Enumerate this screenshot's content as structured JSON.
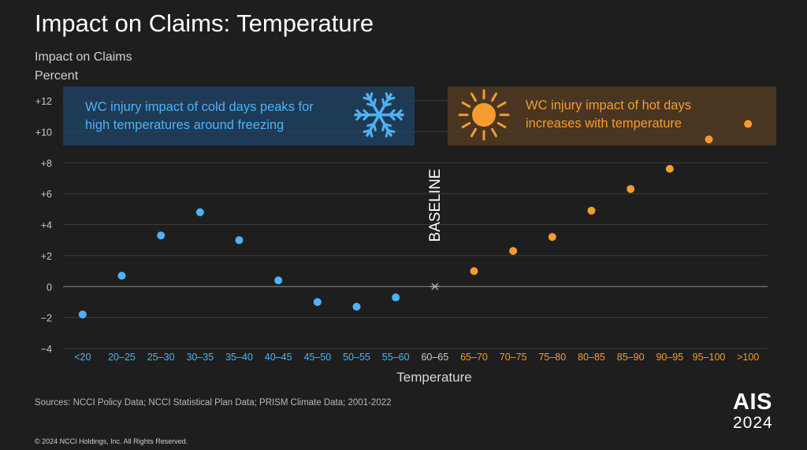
{
  "title": "Impact on Claims: Temperature",
  "y_axis_label_line1": "Impact on Claims",
  "y_axis_label_line2": "Percent",
  "source": "Sources: NCCI Policy Data; NCCI Statistical Plan Data; PRISM Climate Data; 2001-2022",
  "copyright": "© 2024 NCCI Holdings, Inc. All Rights Reserved.",
  "logo": {
    "name": "AIS",
    "year": "2024"
  },
  "colors": {
    "cold": "#4db3f5",
    "hot": "#f59c2e",
    "cold_box": "#1d3a57",
    "hot_box": "#4a3520",
    "grid": "#3c3c3c",
    "axis_text": "#c8c8c8",
    "zero_line": "#8a8a8a"
  },
  "icons": {
    "cold": "snowflake-icon",
    "hot": "sun-icon"
  },
  "chart_data": {
    "type": "scatter",
    "xlabel": "Temperature",
    "ylabel": "Impact on Claims Percent",
    "ylim": [
      -4,
      12
    ],
    "yticks": [
      "−4",
      "−2",
      "0",
      "+2",
      "+4",
      "+6",
      "+8",
      "+10",
      "+12"
    ],
    "categories": [
      "<20",
      "20–25",
      "25–30",
      "30–35",
      "35–40",
      "40–45",
      "45–50",
      "50–55",
      "55–60",
      "60–65",
      "65–70",
      "70–75",
      "75–80",
      "80–85",
      "85–90",
      "90–95",
      "95–100",
      ">100"
    ],
    "series": [
      {
        "group": "cold",
        "values": [
          -1.8,
          0.7,
          3.3,
          4.8,
          3.0,
          0.4,
          -1.0,
          -1.3,
          -0.7,
          null,
          null,
          null,
          null,
          null,
          null,
          null,
          null,
          null
        ]
      },
      {
        "group": "baseline",
        "values": [
          null,
          null,
          null,
          null,
          null,
          null,
          null,
          null,
          null,
          0,
          null,
          null,
          null,
          null,
          null,
          null,
          null,
          null
        ]
      },
      {
        "group": "hot",
        "values": [
          null,
          null,
          null,
          null,
          null,
          null,
          null,
          null,
          null,
          null,
          1.0,
          2.3,
          3.2,
          4.9,
          6.3,
          7.6,
          9.5,
          10.5
        ]
      }
    ],
    "baseline_label": "BASELINE",
    "annotations": {
      "cold": [
        "WC injury impact of cold days peaks for",
        "high temperatures around freezing"
      ],
      "hot": [
        "WC injury impact of hot days",
        "increases with temperature"
      ]
    },
    "grid": true
  }
}
